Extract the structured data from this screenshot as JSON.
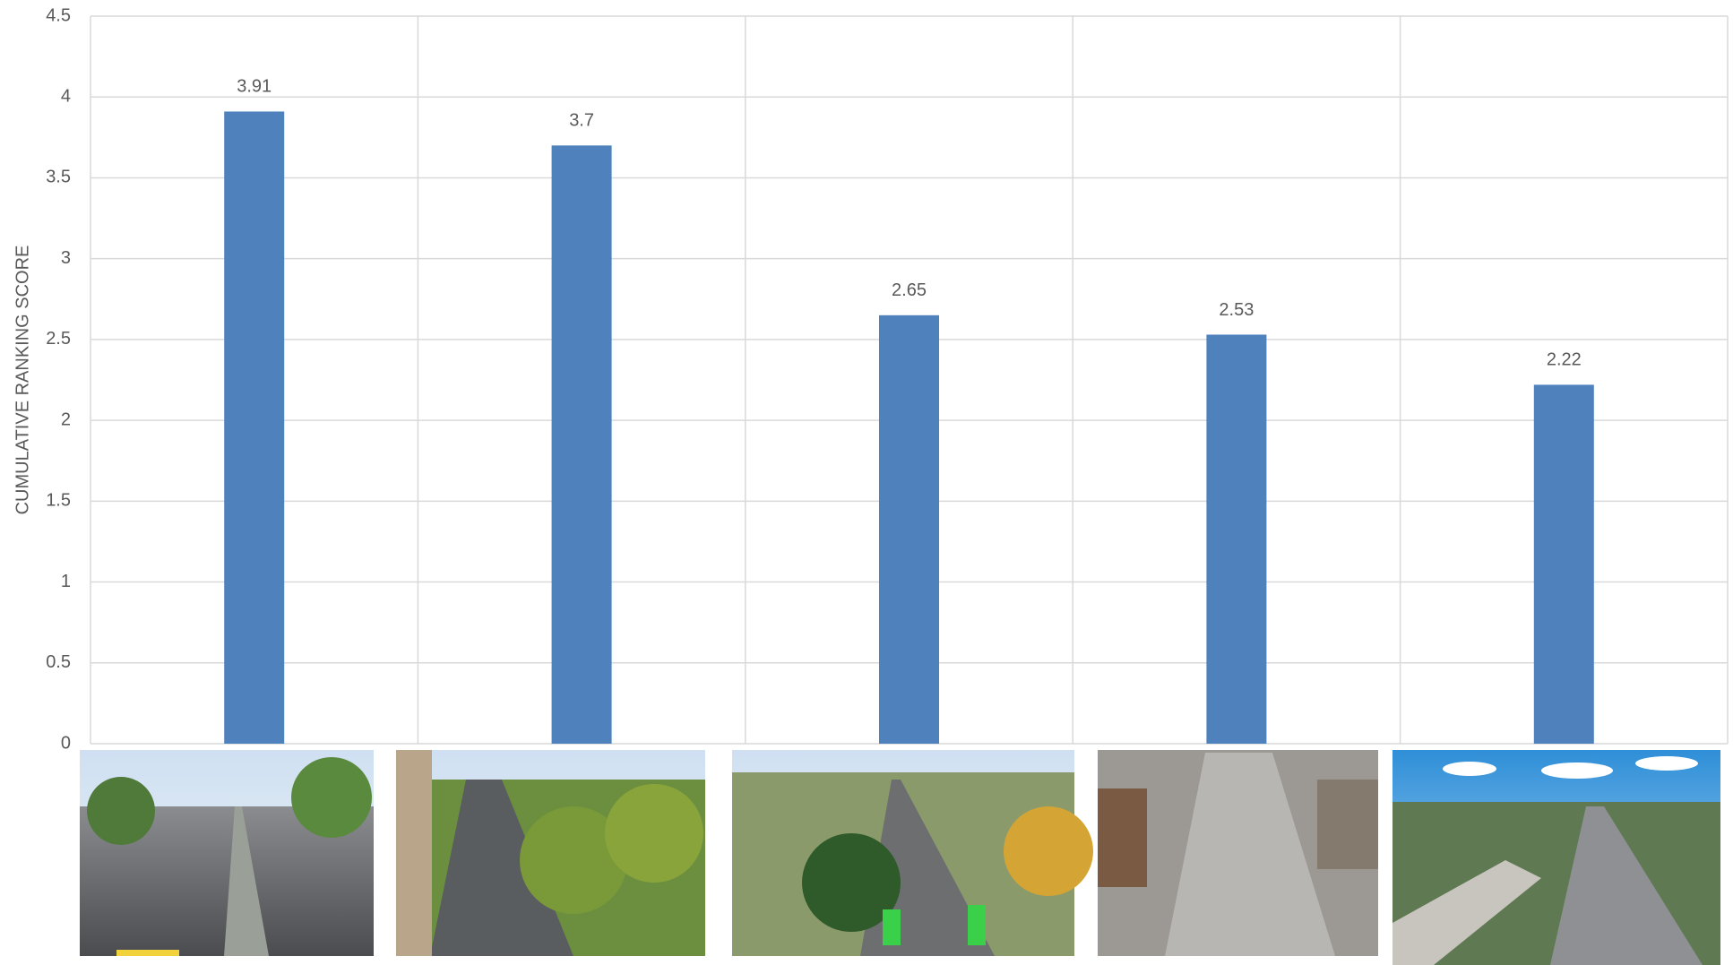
{
  "chart_data": {
    "type": "bar",
    "y_label": "CUMULATIVE RANKING SCORE",
    "categories": [
      null,
      null,
      null,
      null,
      null
    ],
    "values": [
      3.91,
      3.7,
      2.65,
      2.53,
      2.22
    ],
    "color": "#4f81bd",
    "ylim": [
      0,
      4.5
    ],
    "yticks": [
      0,
      0.5,
      1,
      1.5,
      2,
      2.5,
      3,
      3.5,
      4,
      4.5
    ],
    "grid": true
  }
}
